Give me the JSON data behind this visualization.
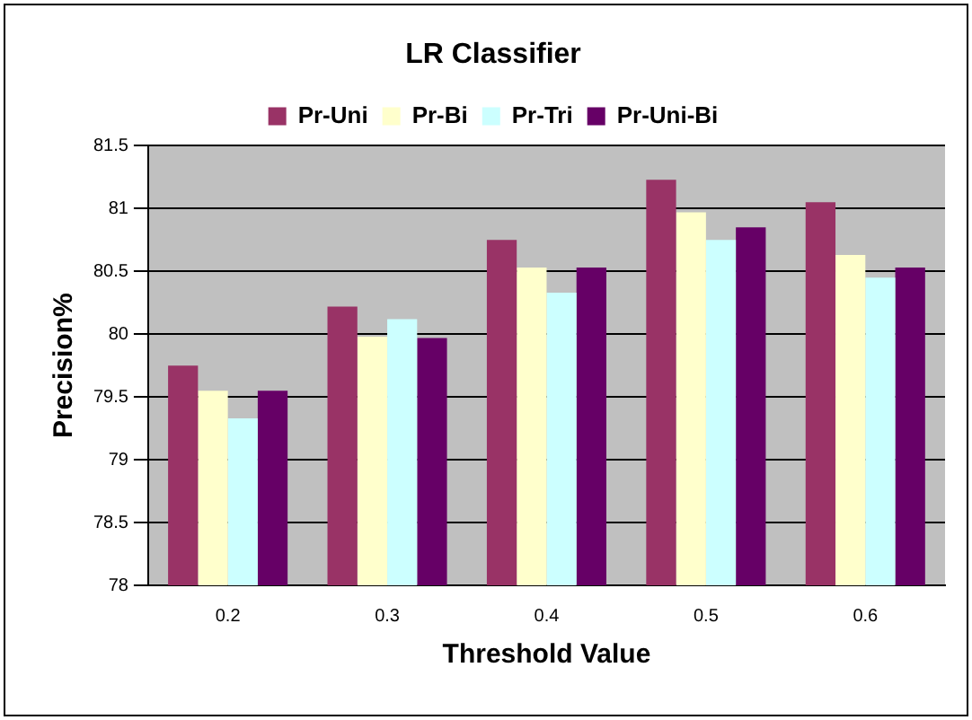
{
  "chart_data": {
    "type": "bar",
    "title": "LR Classifier",
    "xlabel": "Threshold Value",
    "ylabel": "Precision%",
    "categories": [
      "0.2",
      "0.3",
      "0.4",
      "0.5",
      "0.6"
    ],
    "series": [
      {
        "name": "Pr-Uni",
        "color": "#993366",
        "values": [
          79.75,
          80.22,
          80.75,
          81.23,
          81.05
        ]
      },
      {
        "name": "Pr-Bi",
        "color": "#ffffcc",
        "values": [
          79.55,
          79.98,
          80.53,
          80.97,
          80.63
        ]
      },
      {
        "name": "Pr-Tri",
        "color": "#ccffff",
        "values": [
          79.33,
          80.12,
          80.33,
          80.75,
          80.45
        ]
      },
      {
        "name": "Pr-Uni-Bi",
        "color": "#660066",
        "values": [
          79.55,
          79.97,
          80.53,
          80.85,
          80.53
        ]
      }
    ],
    "ylim": [
      78,
      81.5
    ],
    "yticks": [
      78,
      78.5,
      79,
      79.5,
      80,
      80.5,
      81,
      81.5
    ],
    "grid": "y",
    "legend": "top"
  }
}
